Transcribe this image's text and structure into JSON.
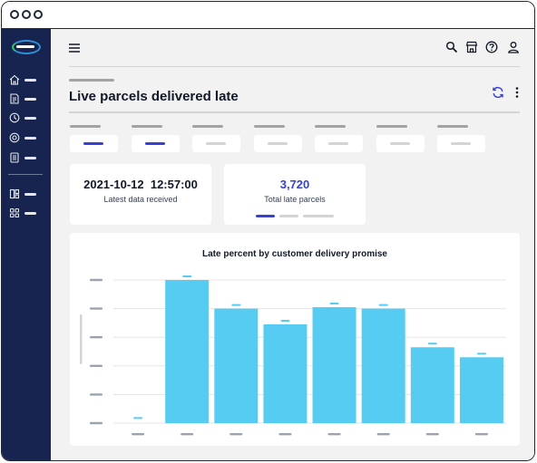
{
  "window": {
    "controls": [
      "close",
      "minimize",
      "maximize"
    ]
  },
  "sidebar": {
    "logo": "brand-logo",
    "items": [
      {
        "icon": "home-icon"
      },
      {
        "icon": "document-list-icon"
      },
      {
        "icon": "clock-icon"
      },
      {
        "icon": "target-icon"
      },
      {
        "icon": "report-icon"
      },
      {
        "icon": "layout-icon"
      },
      {
        "icon": "apps-grid-icon"
      }
    ],
    "colors": {
      "background": "#16244f"
    }
  },
  "header": {
    "menu_icon": "hamburger-icon",
    "actions": [
      {
        "icon": "search-icon"
      },
      {
        "icon": "store-icon"
      },
      {
        "icon": "help-icon"
      },
      {
        "icon": "user-icon"
      }
    ]
  },
  "page": {
    "title": "Live parcels delivered late",
    "actions": [
      {
        "icon": "refresh-icon"
      },
      {
        "icon": "more-vertical-icon"
      }
    ]
  },
  "filters": [
    {
      "active": true
    },
    {
      "active": true
    },
    {
      "active": false
    },
    {
      "active": false
    },
    {
      "active": false
    },
    {
      "active": false
    },
    {
      "active": false
    }
  ],
  "kpis": {
    "latest": {
      "date": "2021-10-12",
      "time": "12:57:00",
      "label": "Latest data received"
    },
    "late": {
      "value": "3,720",
      "label": "Total late parcels",
      "value_color": "#3440d6"
    }
  },
  "chart_data": {
    "type": "bar",
    "title": "Late percent by customer delivery promise",
    "categories": [
      "",
      "",
      "",
      "",
      "",
      "",
      "",
      ""
    ],
    "values": [
      1,
      100,
      80,
      69,
      81,
      80,
      53,
      46
    ],
    "ylim": [
      0,
      100
    ],
    "grid": true,
    "bar_color": "#56ccf2",
    "marker_color": "#56ccf2"
  }
}
